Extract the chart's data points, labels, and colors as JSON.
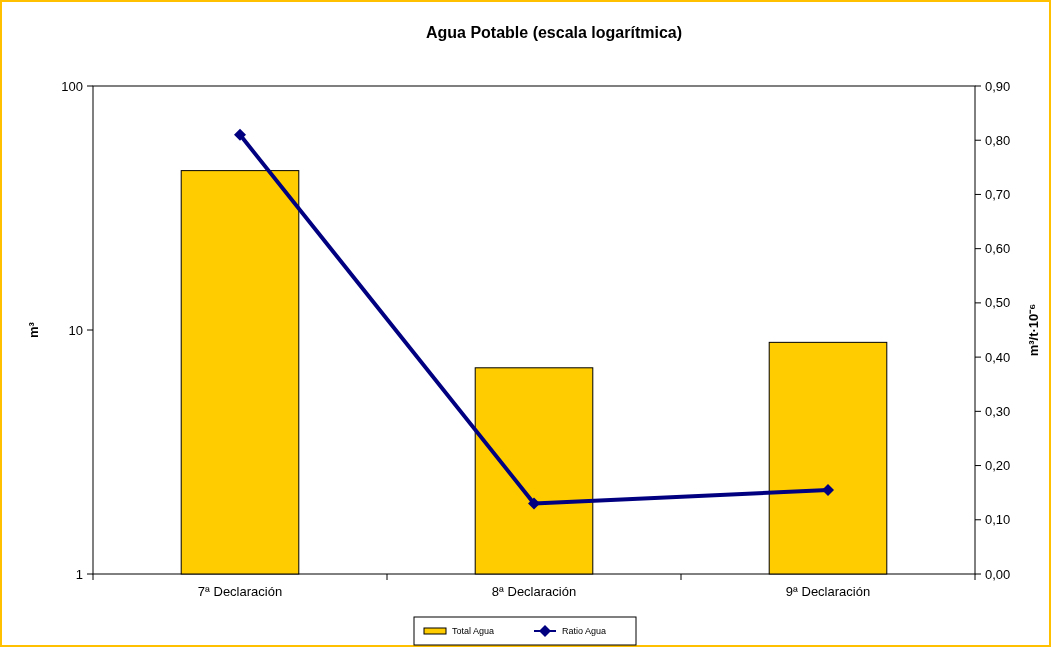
{
  "chart_data": {
    "type": "bar",
    "title": "Agua Potable (escala logarítmica)",
    "ylabel": "m³",
    "y2label": "m³/t·10⁻⁶",
    "categories": [
      "7ª Declaración",
      "8ª Declaración",
      "9ª Declaración"
    ],
    "series": [
      {
        "name": "Total Agua",
        "color": "#ffcc00",
        "values": [
          45,
          7,
          8.9
        ]
      },
      {
        "name": "Ratio Agua",
        "type": "line",
        "axis": "y2",
        "color": "#000080",
        "values": [
          0.81,
          0.13,
          0.155
        ]
      }
    ],
    "log": "y",
    "ylim": [
      1,
      100
    ],
    "yticks": [
      1,
      10,
      100
    ],
    "y2lim": [
      0,
      0.9
    ],
    "y2ticks": [
      {
        "value": 0,
        "label": "0,00"
      },
      {
        "value": 0.1,
        "label": "0,10"
      },
      {
        "value": 0.2,
        "label": "0,20"
      },
      {
        "value": 0.3,
        "label": "0,30"
      },
      {
        "value": 0.4,
        "label": "0,40"
      },
      {
        "value": 0.5,
        "label": "0,50"
      },
      {
        "value": 0.6,
        "label": "0,60"
      },
      {
        "value": 0.7,
        "label": "0,70"
      },
      {
        "value": 0.8,
        "label": "0,80"
      },
      {
        "value": 0.9,
        "label": "0,90"
      }
    ],
    "marker": "diamond",
    "legend": "bottom",
    "grid": false
  }
}
